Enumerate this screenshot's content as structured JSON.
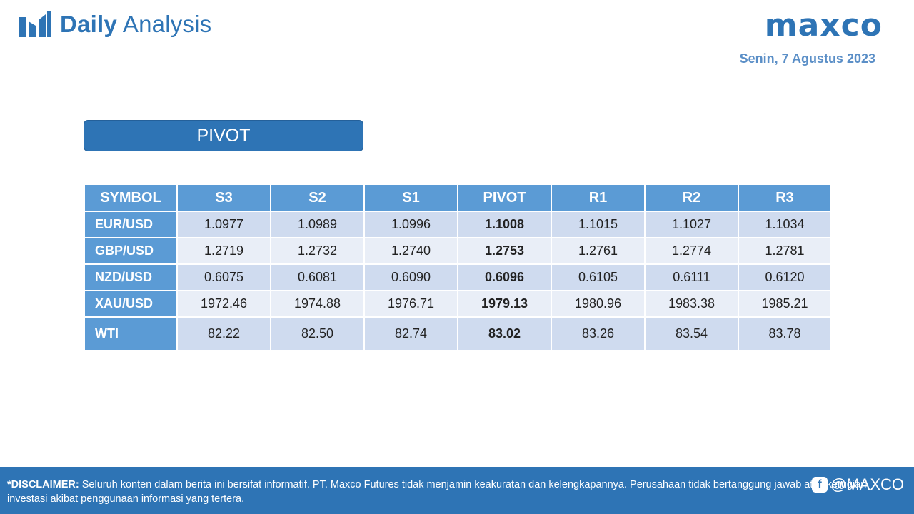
{
  "header": {
    "title_bold": "Daily",
    "title_light": "Analysis",
    "logo": "maxco",
    "date": "Senin, 7 Agustus 2023"
  },
  "section": {
    "title": "PIVOT"
  },
  "table": {
    "columns": [
      "SYMBOL",
      "S3",
      "S2",
      "S1",
      "PIVOT",
      "R1",
      "R2",
      "R3"
    ],
    "rows": [
      {
        "symbol": "EUR/USD",
        "values": [
          "1.0977",
          "1.0989",
          "1.0996",
          "1.1008",
          "1.1015",
          "1.1027",
          "1.1034"
        ]
      },
      {
        "symbol": "GBP/USD",
        "values": [
          "1.2719",
          "1.2732",
          "1.2740",
          "1.2753",
          "1.2761",
          "1.2774",
          "1.2781"
        ]
      },
      {
        "symbol": "NZD/USD",
        "values": [
          "0.6075",
          "0.6081",
          "0.6090",
          "0.6096",
          "0.6105",
          "0.6111",
          "0.6120"
        ]
      },
      {
        "symbol": "XAU/USD",
        "values": [
          "1972.46",
          "1974.88",
          "1976.71",
          "1979.13",
          "1980.96",
          "1983.38",
          "1985.21"
        ]
      },
      {
        "symbol": "WTI",
        "values": [
          "82.22",
          "82.50",
          "82.74",
          "83.02",
          "83.26",
          "83.54",
          "83.78"
        ]
      }
    ]
  },
  "footer": {
    "disclaimer_lead": "*DISCLAIMER:",
    "disclaimer_text": " Seluruh konten dalam berita ini bersifat informatif. PT. Maxco Futures tidak menjamin keakuratan dan kelengkapannya. Perusahaan tidak bertanggung jawab atas kerugian investasi akibat penggunaan informasi yang tertera.",
    "social_handle": "@MAXCO",
    "social_icon": "facebook-icon"
  },
  "colors": {
    "brand_blue": "#2e74b5",
    "header_blue": "#5b9bd5",
    "row_odd": "#cfdbef",
    "row_even": "#e9eef7"
  }
}
